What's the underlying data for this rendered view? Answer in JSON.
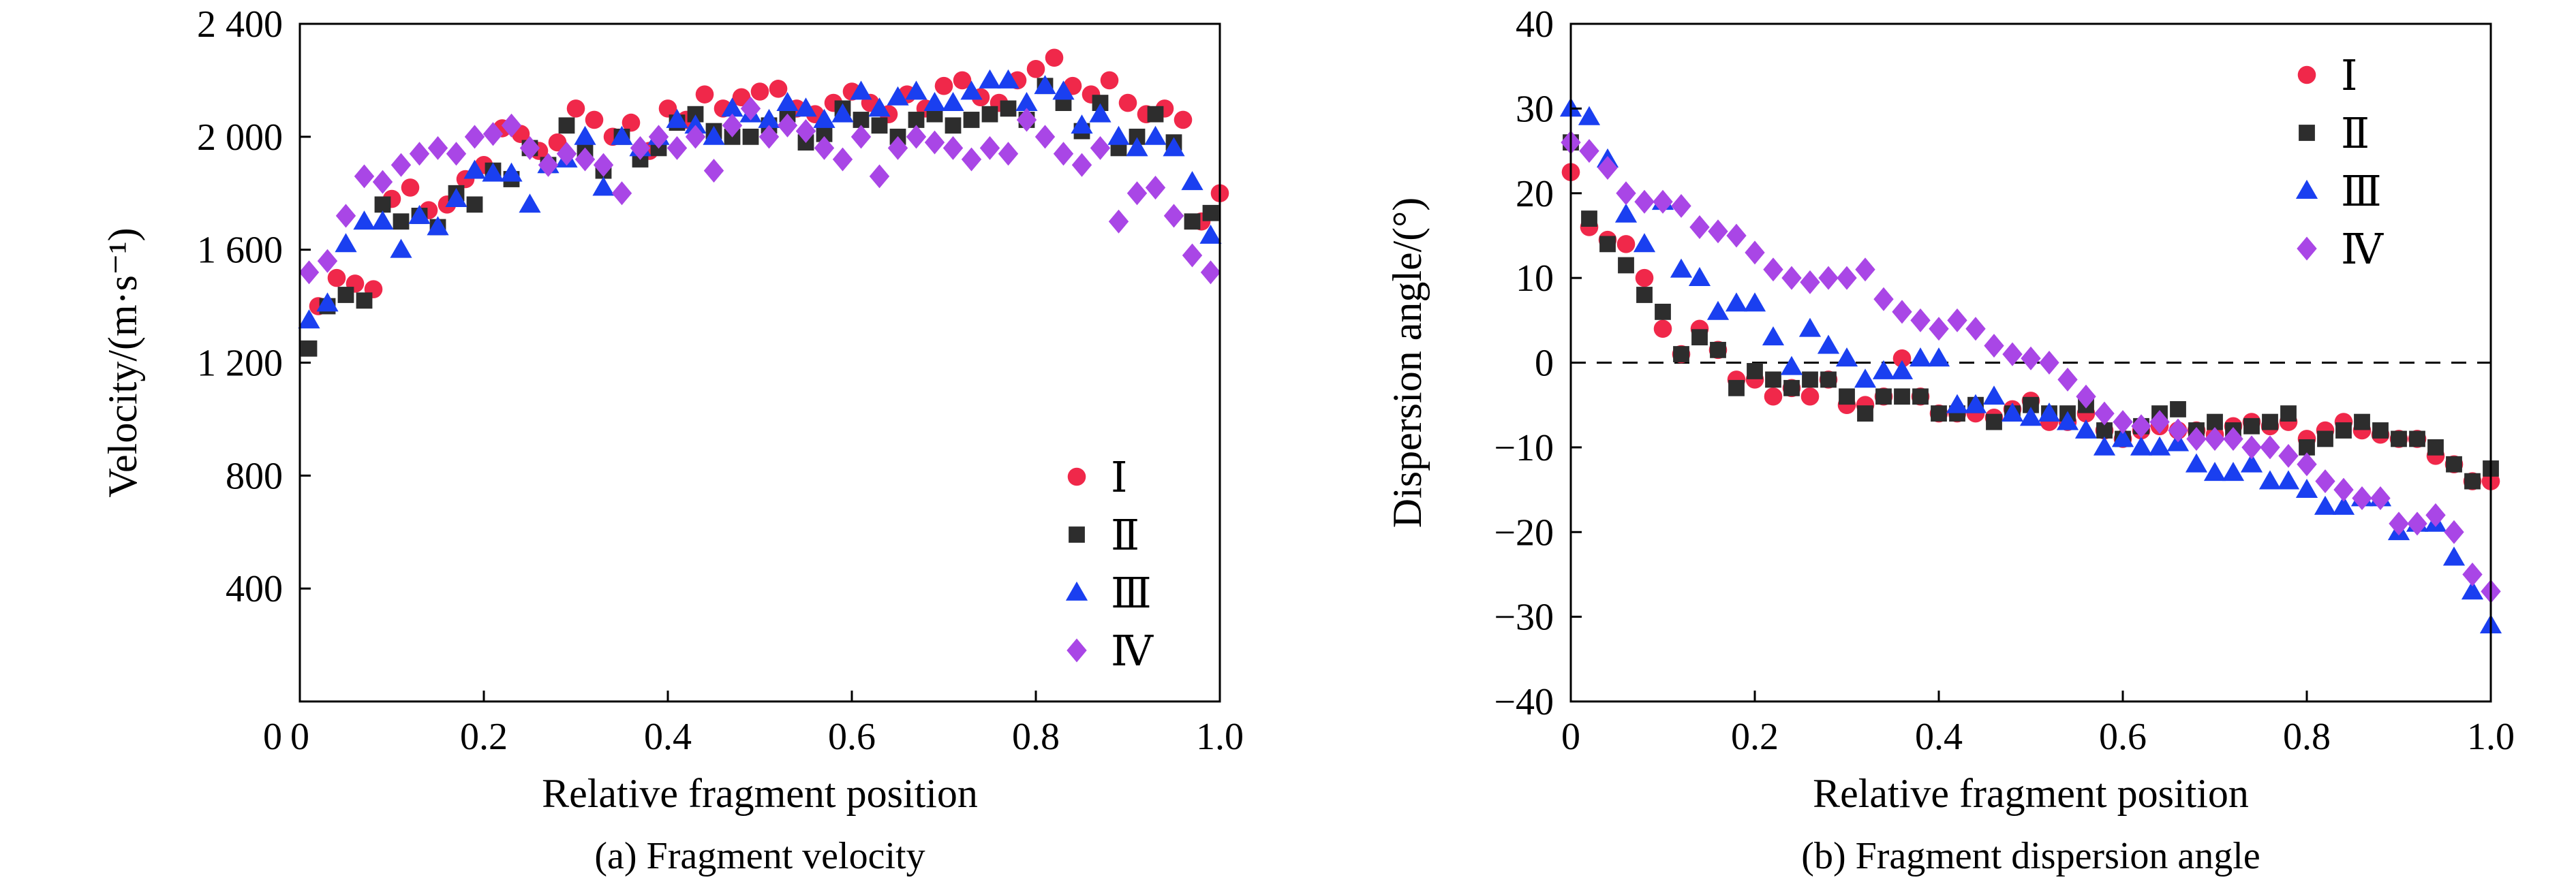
{
  "chart_data": [
    {
      "type": "scatter",
      "caption": "(a) Fragment velocity",
      "xlabel": "Relative fragment position",
      "ylabel": "Velocity/(m·s⁻¹)",
      "xlim": [
        0,
        1.0
      ],
      "ylim": [
        0,
        2400
      ],
      "x_ticks": [
        0,
        0.2,
        0.4,
        0.6,
        0.8,
        1.0
      ],
      "x_tick_labels": [
        "0",
        "0.2",
        "0.4",
        "0.6",
        "0.8",
        "1.0"
      ],
      "y_ticks": [
        400,
        800,
        1200,
        1600,
        2000,
        2400
      ],
      "y_tick_labels": [
        "400",
        "800",
        "1 200",
        "1 600",
        "2 000",
        "2 400"
      ],
      "grid": false,
      "legend_position": "bottom-right",
      "series": [
        {
          "name": "Ⅰ",
          "color": "#f0284a",
          "marker": "circle",
          "x": [
            0.02,
            0.04,
            0.06,
            0.08,
            0.1,
            0.12,
            0.14,
            0.16,
            0.18,
            0.2,
            0.22,
            0.24,
            0.26,
            0.28,
            0.3,
            0.32,
            0.34,
            0.36,
            0.38,
            0.4,
            0.42,
            0.44,
            0.46,
            0.48,
            0.5,
            0.52,
            0.54,
            0.56,
            0.58,
            0.6,
            0.62,
            0.64,
            0.66,
            0.68,
            0.7,
            0.72,
            0.74,
            0.76,
            0.78,
            0.8,
            0.82,
            0.84,
            0.86,
            0.88,
            0.9,
            0.92,
            0.94,
            0.96,
            0.98,
            1.0
          ],
          "y": [
            1400,
            1500,
            1480,
            1460,
            1780,
            1820,
            1740,
            1760,
            1850,
            1900,
            2030,
            2010,
            1950,
            1980,
            2100,
            2060,
            2000,
            2050,
            1950,
            2100,
            2060,
            2150,
            2100,
            2140,
            2160,
            2170,
            2100,
            2080,
            2120,
            2160,
            2120,
            2080,
            2150,
            2100,
            2180,
            2200,
            2140,
            2120,
            2200,
            2240,
            2280,
            2180,
            2150,
            2200,
            2120,
            2080,
            2100,
            2060,
            1700,
            1800
          ]
        },
        {
          "name": "Ⅱ",
          "color": "#2d2d2d",
          "marker": "square",
          "x": [
            0.01,
            0.03,
            0.05,
            0.07,
            0.09,
            0.11,
            0.13,
            0.15,
            0.17,
            0.19,
            0.21,
            0.23,
            0.25,
            0.27,
            0.29,
            0.31,
            0.33,
            0.35,
            0.37,
            0.39,
            0.41,
            0.43,
            0.45,
            0.47,
            0.49,
            0.51,
            0.53,
            0.55,
            0.57,
            0.59,
            0.61,
            0.63,
            0.65,
            0.67,
            0.69,
            0.71,
            0.73,
            0.75,
            0.77,
            0.79,
            0.81,
            0.83,
            0.85,
            0.87,
            0.89,
            0.91,
            0.93,
            0.95,
            0.97,
            0.99
          ],
          "y": [
            1250,
            1400,
            1440,
            1420,
            1760,
            1700,
            1720,
            1680,
            1800,
            1760,
            1880,
            1850,
            1960,
            1900,
            2040,
            1950,
            1880,
            2000,
            1920,
            1960,
            2050,
            2080,
            2020,
            2000,
            2000,
            2040,
            2080,
            1980,
            2010,
            2100,
            2060,
            2040,
            2000,
            2060,
            2080,
            2040,
            2060,
            2080,
            2100,
            2060,
            2180,
            2120,
            2020,
            2120,
            1960,
            2000,
            2080,
            1980,
            1700,
            1730
          ]
        },
        {
          "name": "Ⅲ",
          "color": "#1a3ff0",
          "marker": "triangle",
          "x": [
            0.01,
            0.03,
            0.05,
            0.07,
            0.09,
            0.11,
            0.13,
            0.15,
            0.17,
            0.19,
            0.21,
            0.23,
            0.25,
            0.27,
            0.29,
            0.31,
            0.33,
            0.35,
            0.37,
            0.39,
            0.41,
            0.43,
            0.45,
            0.47,
            0.49,
            0.51,
            0.53,
            0.55,
            0.57,
            0.59,
            0.61,
            0.63,
            0.65,
            0.67,
            0.69,
            0.71,
            0.73,
            0.75,
            0.77,
            0.79,
            0.81,
            0.83,
            0.85,
            0.87,
            0.89,
            0.91,
            0.93,
            0.95,
            0.97,
            0.99
          ],
          "y": [
            1350,
            1410,
            1620,
            1700,
            1700,
            1600,
            1720,
            1680,
            1780,
            1880,
            1870,
            1870,
            1760,
            1900,
            1920,
            2000,
            1820,
            2000,
            1960,
            2000,
            2060,
            2040,
            2000,
            2100,
            2080,
            2060,
            2120,
            2100,
            2060,
            2080,
            2160,
            2100,
            2140,
            2160,
            2120,
            2120,
            2160,
            2200,
            2200,
            2120,
            2180,
            2160,
            2040,
            2080,
            2000,
            1960,
            2000,
            1960,
            1840,
            1650
          ]
        },
        {
          "name": "Ⅳ",
          "color": "#a946e6",
          "marker": "diamond",
          "x": [
            0.01,
            0.03,
            0.05,
            0.07,
            0.09,
            0.11,
            0.13,
            0.15,
            0.17,
            0.19,
            0.21,
            0.23,
            0.25,
            0.27,
            0.29,
            0.31,
            0.33,
            0.35,
            0.37,
            0.39,
            0.41,
            0.43,
            0.45,
            0.47,
            0.49,
            0.51,
            0.53,
            0.55,
            0.57,
            0.59,
            0.61,
            0.63,
            0.65,
            0.67,
            0.69,
            0.71,
            0.73,
            0.75,
            0.77,
            0.79,
            0.81,
            0.83,
            0.85,
            0.87,
            0.89,
            0.91,
            0.93,
            0.95,
            0.97,
            0.99
          ],
          "y": [
            1520,
            1560,
            1720,
            1860,
            1840,
            1900,
            1940,
            1960,
            1940,
            2000,
            2010,
            2040,
            1960,
            1900,
            1940,
            1920,
            1900,
            1800,
            1960,
            2000,
            1960,
            2000,
            1880,
            2040,
            2100,
            2000,
            2040,
            2020,
            1960,
            1920,
            2000,
            1860,
            1960,
            2000,
            1980,
            1960,
            1920,
            1960,
            1940,
            2060,
            2000,
            1940,
            1900,
            1960,
            1700,
            1800,
            1820,
            1720,
            1580,
            1520
          ]
        }
      ]
    },
    {
      "type": "scatter",
      "caption": "(b) Fragment dispersion angle",
      "xlabel": "Relative fragment position",
      "ylabel": "Dispersion angle/(°)",
      "xlim": [
        0,
        1.0
      ],
      "ylim": [
        -40,
        40
      ],
      "x_ticks": [
        0,
        0.2,
        0.4,
        0.6,
        0.8,
        1.0
      ],
      "x_tick_labels": [
        "0",
        "0.2",
        "0.4",
        "0.6",
        "0.8",
        "1.0"
      ],
      "y_ticks": [
        -40,
        -30,
        -20,
        -10,
        0,
        10,
        20,
        30,
        40
      ],
      "y_tick_labels": [
        "−40",
        "−30",
        "−20",
        "−10",
        "0",
        "10",
        "20",
        "30",
        "40"
      ],
      "zero_line": true,
      "grid": false,
      "legend_position": "top-right",
      "series": [
        {
          "name": "Ⅰ",
          "color": "#f0284a",
          "marker": "circle",
          "x": [
            0.0,
            0.02,
            0.04,
            0.06,
            0.08,
            0.1,
            0.12,
            0.14,
            0.16,
            0.18,
            0.2,
            0.22,
            0.24,
            0.26,
            0.28,
            0.3,
            0.32,
            0.34,
            0.36,
            0.38,
            0.4,
            0.42,
            0.44,
            0.46,
            0.48,
            0.5,
            0.52,
            0.54,
            0.56,
            0.58,
            0.6,
            0.62,
            0.64,
            0.66,
            0.68,
            0.7,
            0.72,
            0.74,
            0.76,
            0.78,
            0.8,
            0.82,
            0.84,
            0.86,
            0.88,
            0.9,
            0.92,
            0.94,
            0.96,
            0.98,
            1.0
          ],
          "y": [
            22.5,
            16,
            14.5,
            14,
            10,
            4,
            1,
            4,
            1.5,
            -2,
            -2,
            -4,
            -3,
            -4,
            -2,
            -5,
            -5,
            -4,
            0.5,
            -4,
            -6,
            -6,
            -6,
            -6.5,
            -5.5,
            -4.5,
            -7,
            -7,
            -6,
            -8,
            -9,
            -8,
            -7.5,
            -8,
            -8,
            -8.5,
            -7.5,
            -7,
            -7.5,
            -7,
            -9,
            -8,
            -7,
            -8,
            -8.5,
            -9,
            -9,
            -11,
            -12,
            -14,
            -14
          ]
        },
        {
          "name": "Ⅱ",
          "color": "#2d2d2d",
          "marker": "square",
          "x": [
            0.0,
            0.02,
            0.04,
            0.06,
            0.08,
            0.1,
            0.12,
            0.14,
            0.16,
            0.18,
            0.2,
            0.22,
            0.24,
            0.26,
            0.28,
            0.3,
            0.32,
            0.34,
            0.36,
            0.38,
            0.4,
            0.42,
            0.44,
            0.46,
            0.48,
            0.5,
            0.52,
            0.54,
            0.56,
            0.58,
            0.6,
            0.62,
            0.64,
            0.66,
            0.68,
            0.7,
            0.72,
            0.74,
            0.76,
            0.78,
            0.8,
            0.82,
            0.84,
            0.86,
            0.88,
            0.9,
            0.92,
            0.94,
            0.96,
            0.98,
            1.0
          ],
          "y": [
            26,
            17,
            14,
            11.5,
            8,
            6,
            1,
            3,
            1.5,
            -3,
            -1,
            -2,
            -3,
            -2,
            -2,
            -4,
            -6,
            -4,
            -4,
            -4,
            -6,
            -6,
            -5,
            -7,
            -6,
            -5,
            -6,
            -6,
            -5,
            -8,
            -9,
            -7.5,
            -6,
            -5.5,
            -8,
            -7,
            -8,
            -7.5,
            -7,
            -6,
            -10,
            -9,
            -8,
            -7,
            -8,
            -9,
            -9,
            -10,
            -12,
            -14,
            -12.5
          ]
        },
        {
          "name": "Ⅲ",
          "color": "#1a3ff0",
          "marker": "triangle",
          "x": [
            0.0,
            0.02,
            0.04,
            0.06,
            0.08,
            0.1,
            0.12,
            0.14,
            0.16,
            0.18,
            0.2,
            0.22,
            0.24,
            0.26,
            0.28,
            0.3,
            0.32,
            0.34,
            0.36,
            0.38,
            0.4,
            0.42,
            0.44,
            0.46,
            0.48,
            0.5,
            0.52,
            0.54,
            0.56,
            0.58,
            0.6,
            0.62,
            0.64,
            0.66,
            0.68,
            0.7,
            0.72,
            0.74,
            0.76,
            0.78,
            0.8,
            0.82,
            0.84,
            0.86,
            0.88,
            0.9,
            0.92,
            0.94,
            0.96,
            0.98,
            1.0
          ],
          "y": [
            30,
            29,
            24,
            17.5,
            14,
            19,
            11,
            10,
            6,
            7,
            7,
            3,
            -0.5,
            4,
            2,
            0.5,
            -2,
            -1,
            -1,
            0.5,
            0.5,
            -5,
            -5,
            -4,
            -6,
            -6.5,
            -6,
            -7,
            -8,
            -10,
            -9,
            -10,
            -10,
            -9.5,
            -12,
            -13,
            -13,
            -12,
            -14,
            -14,
            -15,
            -17,
            -17,
            -16,
            -16,
            -20,
            -19,
            -19,
            -23,
            -27,
            -31
          ]
        },
        {
          "name": "Ⅳ",
          "color": "#a946e6",
          "marker": "diamond",
          "x": [
            0.0,
            0.02,
            0.04,
            0.06,
            0.08,
            0.1,
            0.12,
            0.14,
            0.16,
            0.18,
            0.2,
            0.22,
            0.24,
            0.26,
            0.28,
            0.3,
            0.32,
            0.34,
            0.36,
            0.38,
            0.4,
            0.42,
            0.44,
            0.46,
            0.48,
            0.5,
            0.52,
            0.54,
            0.56,
            0.58,
            0.6,
            0.62,
            0.64,
            0.66,
            0.68,
            0.7,
            0.72,
            0.74,
            0.76,
            0.78,
            0.8,
            0.82,
            0.84,
            0.86,
            0.88,
            0.9,
            0.92,
            0.94,
            0.96,
            0.98,
            1.0
          ],
          "y": [
            26,
            25,
            23,
            20,
            19,
            19,
            18.5,
            16,
            15.5,
            15,
            13,
            11,
            10,
            9.5,
            10,
            10,
            11,
            7.5,
            6,
            5,
            4,
            5,
            4,
            2,
            1,
            0.5,
            0,
            -2,
            -4,
            -6,
            -7,
            -7.5,
            -7,
            -8,
            -9,
            -9,
            -9,
            -10,
            -10,
            -11,
            -12,
            -14,
            -15,
            -16,
            -16,
            -19,
            -19,
            -18,
            -20,
            -25,
            -27
          ]
        }
      ]
    }
  ]
}
